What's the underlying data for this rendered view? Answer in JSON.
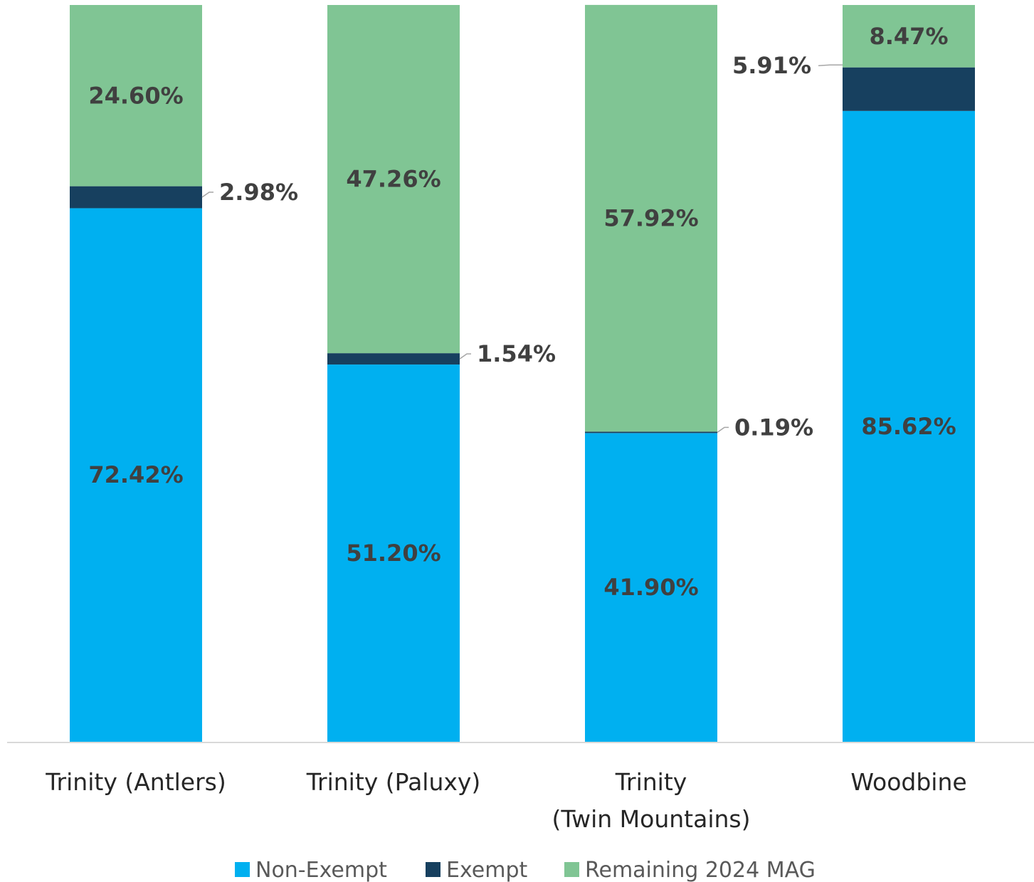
{
  "chart_data": {
    "type": "bar",
    "stacked": true,
    "categories": [
      [
        "Trinity (Antlers)"
      ],
      [
        "Trinity (Paluxy)"
      ],
      [
        "Trinity",
        "(Twin Mountains)"
      ],
      [
        "Woodbine"
      ]
    ],
    "series": [
      {
        "name": "Non-Exempt",
        "color": "#00b0f0",
        "values": [
          72.42,
          51.2,
          41.9,
          85.62
        ],
        "labels": [
          "72.42%",
          "51.20%",
          "41.90%",
          "85.62%"
        ]
      },
      {
        "name": "Exempt",
        "color": "#17405f",
        "values": [
          2.98,
          1.54,
          0.19,
          5.91
        ],
        "labels": [
          "2.98%",
          "1.54%",
          "0.19%",
          "5.91%"
        ]
      },
      {
        "name": "Remaining 2024 MAG",
        "color": "#80c594",
        "values": [
          24.6,
          47.26,
          57.92,
          8.47
        ],
        "labels": [
          "24.60%",
          "47.26%",
          "57.92%",
          "8.47%"
        ]
      }
    ],
    "ylim": [
      0,
      100
    ],
    "grid": false,
    "legend": "bottom",
    "label_color": "#404040",
    "axis_color": "#d9d9d9"
  }
}
